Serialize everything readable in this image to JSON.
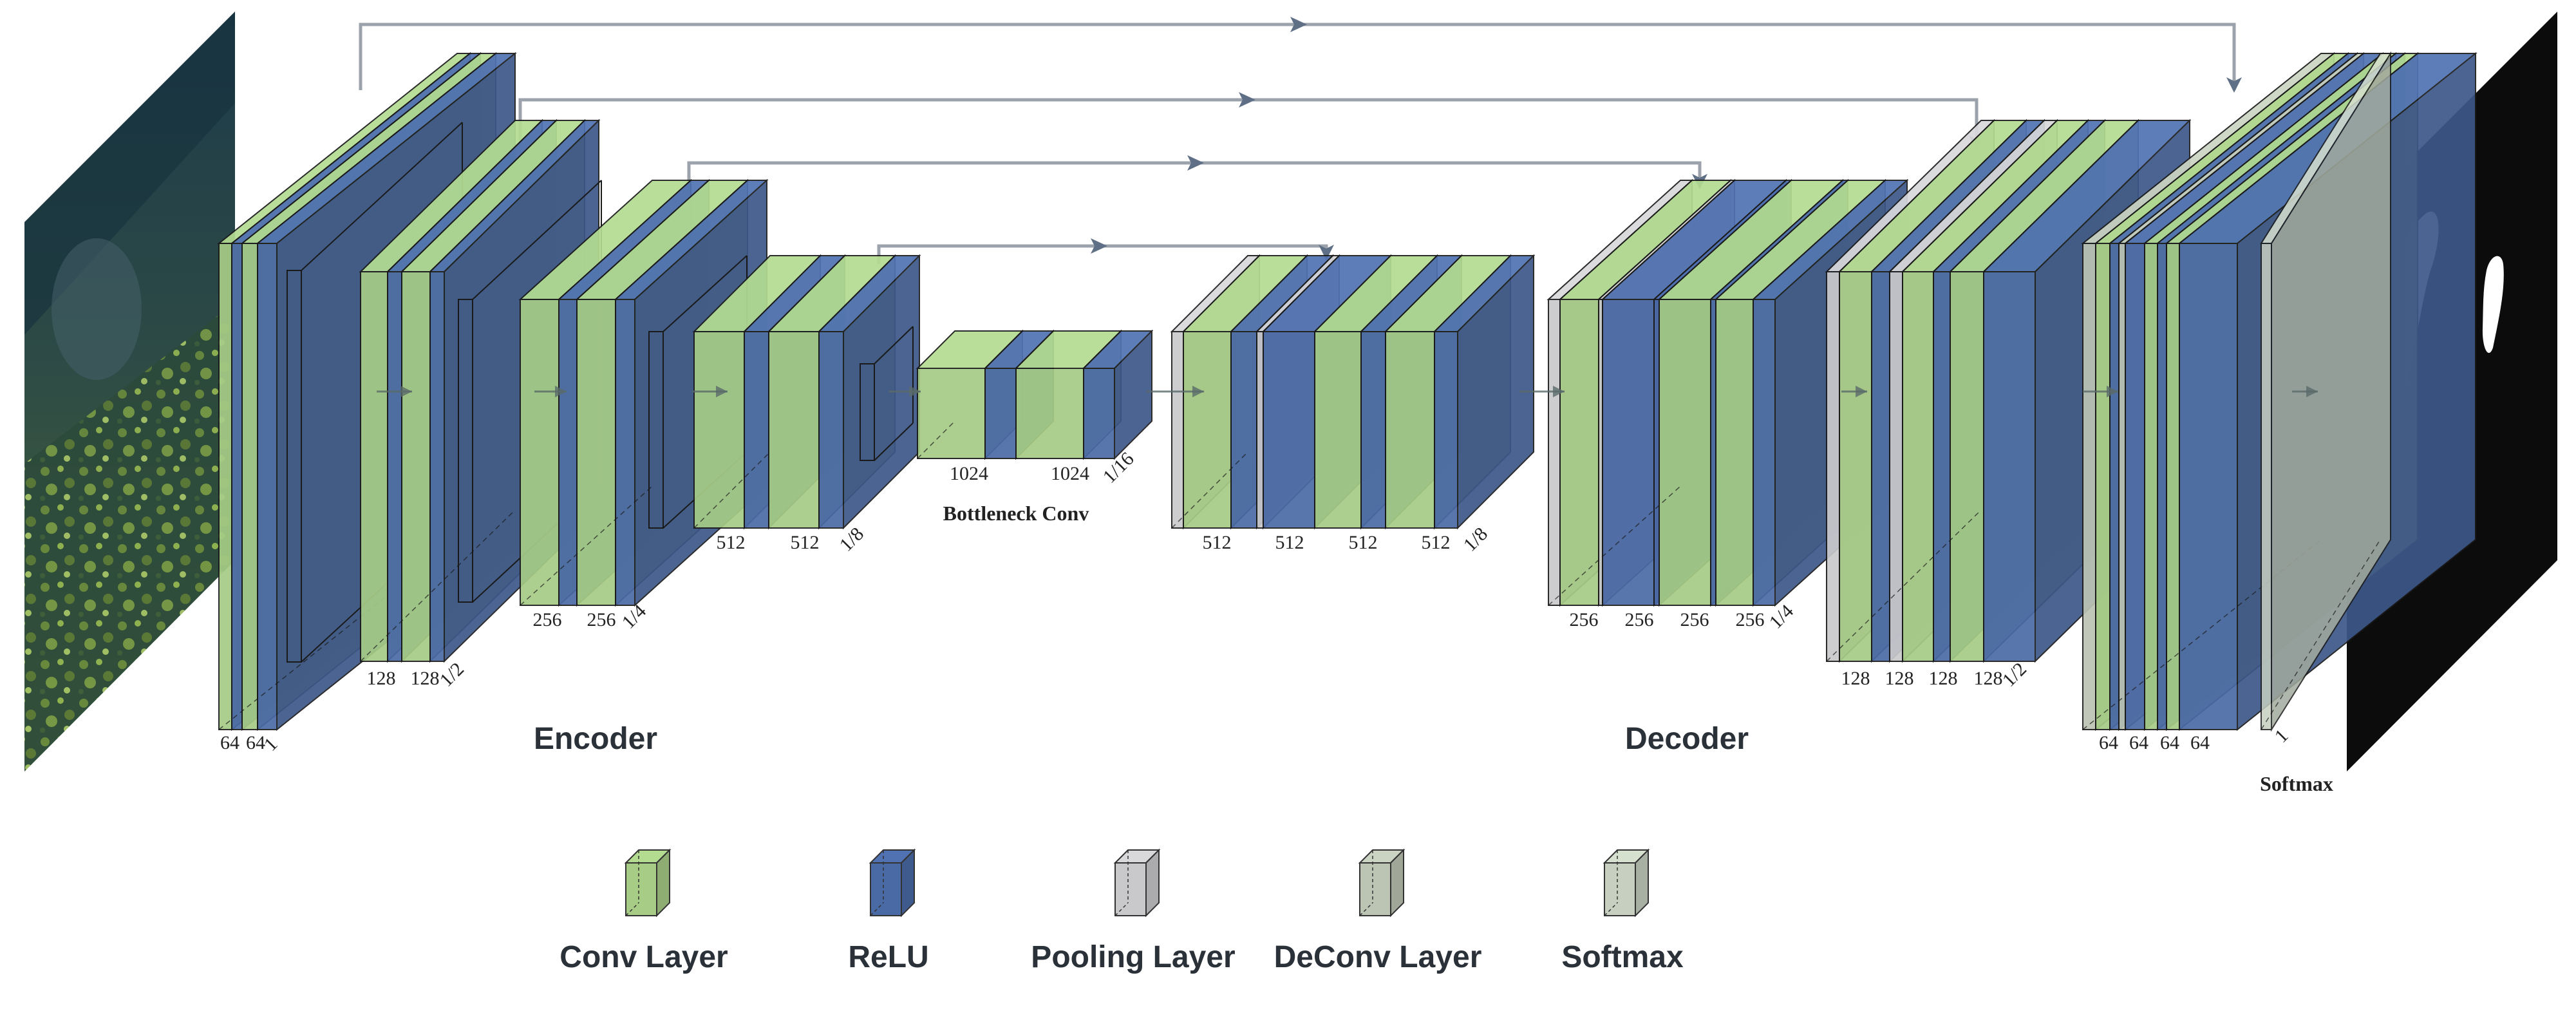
{
  "colors": {
    "conv": "#a6cc86",
    "relu": "#4a6aa6",
    "pool": "#c9c9cc",
    "deconv": "#bcc4b4",
    "softmax": "#c6cfc0",
    "edge": "#1a1a1a",
    "skip": "#9ba2ab",
    "output_bg": "#0c0c0c",
    "mask": "#ffffff"
  },
  "labels": {
    "encoder": "Encoder",
    "decoder": "Decoder",
    "bottleneck": "Bottleneck Conv",
    "softmax_caption": "Softmax"
  },
  "encoder_blocks": [
    {
      "channels": [
        "64",
        "64"
      ],
      "scale": "1"
    },
    {
      "channels": [
        "128",
        "128"
      ],
      "scale": "1/2"
    },
    {
      "channels": [
        "256",
        "256"
      ],
      "scale": "1/4"
    },
    {
      "channels": [
        "512",
        "512"
      ],
      "scale": "1/8"
    }
  ],
  "bottleneck_block": {
    "channels": [
      "1024",
      "1024"
    ],
    "scale": "1/16"
  },
  "decoder_blocks": [
    {
      "channels": [
        "512",
        "512",
        "512",
        "512"
      ],
      "scale": "1/8"
    },
    {
      "channels": [
        "256",
        "256",
        "256",
        "256"
      ],
      "scale": "1/4"
    },
    {
      "channels": [
        "128",
        "128",
        "128",
        "128"
      ],
      "scale": "1/2"
    },
    {
      "channels": [
        "64",
        "64",
        "64",
        "64"
      ],
      "scale": ""
    }
  ],
  "output_block": {
    "channel": "1"
  },
  "legend": [
    {
      "label": "Conv Layer",
      "icon": "conv-cube-icon"
    },
    {
      "label": "ReLU",
      "icon": "relu-cube-icon"
    },
    {
      "label": "Pooling Layer",
      "icon": "pooling-cube-icon"
    },
    {
      "label": "DeConv Layer",
      "icon": "deconv-cube-icon"
    },
    {
      "label": "Softmax",
      "icon": "softmax-cube-icon"
    }
  ]
}
